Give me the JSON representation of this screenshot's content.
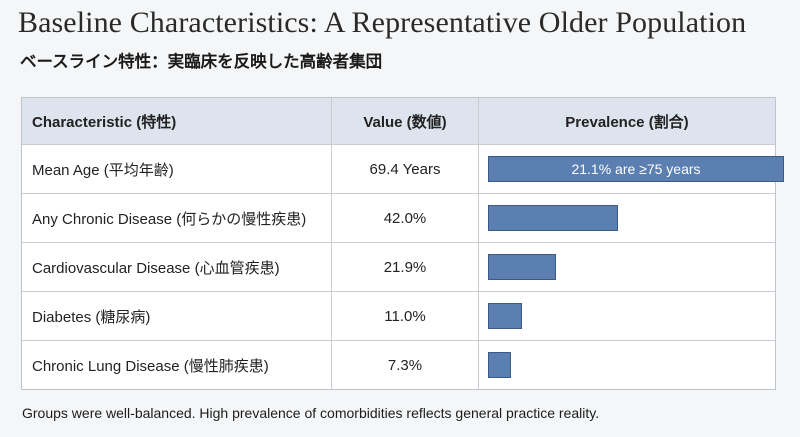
{
  "title": "Baseline Characteristics: A Representative Older Population",
  "subtitle": "ベースライン特性：実臨床を反映した高齢者集団",
  "table": {
    "headers": [
      "Characteristic (特性)",
      "Value (数値)",
      "Prevalence (割合)"
    ],
    "rows": [
      {
        "characteristic": "Mean Age (平均年齢)",
        "value": "69.4 Years",
        "prevalence": 21.1,
        "bar_label": "21.1% are ≥75 years"
      },
      {
        "characteristic": "Any Chronic Disease (何らかの慢性疾患)",
        "value": "42.0%",
        "prevalence": 42.0,
        "bar_label": ""
      },
      {
        "characteristic": "Cardiovascular Disease (心血管疾患)",
        "value": "21.9%",
        "prevalence": 21.9,
        "bar_label": ""
      },
      {
        "characteristic": "Diabetes (糖尿病)",
        "value": "11.0%",
        "prevalence": 11.0,
        "bar_label": ""
      },
      {
        "characteristic": "Chronic Lung Disease (慢性肺疾患)",
        "value": "7.3%",
        "prevalence": 7.3,
        "bar_label": ""
      }
    ]
  },
  "colors": {
    "bar_fill": "#5b7fb0",
    "header_bg": "#dde4ee"
  },
  "footer": "Groups were well-balanced. High prevalence of comorbidities reflects general practice reality."
}
